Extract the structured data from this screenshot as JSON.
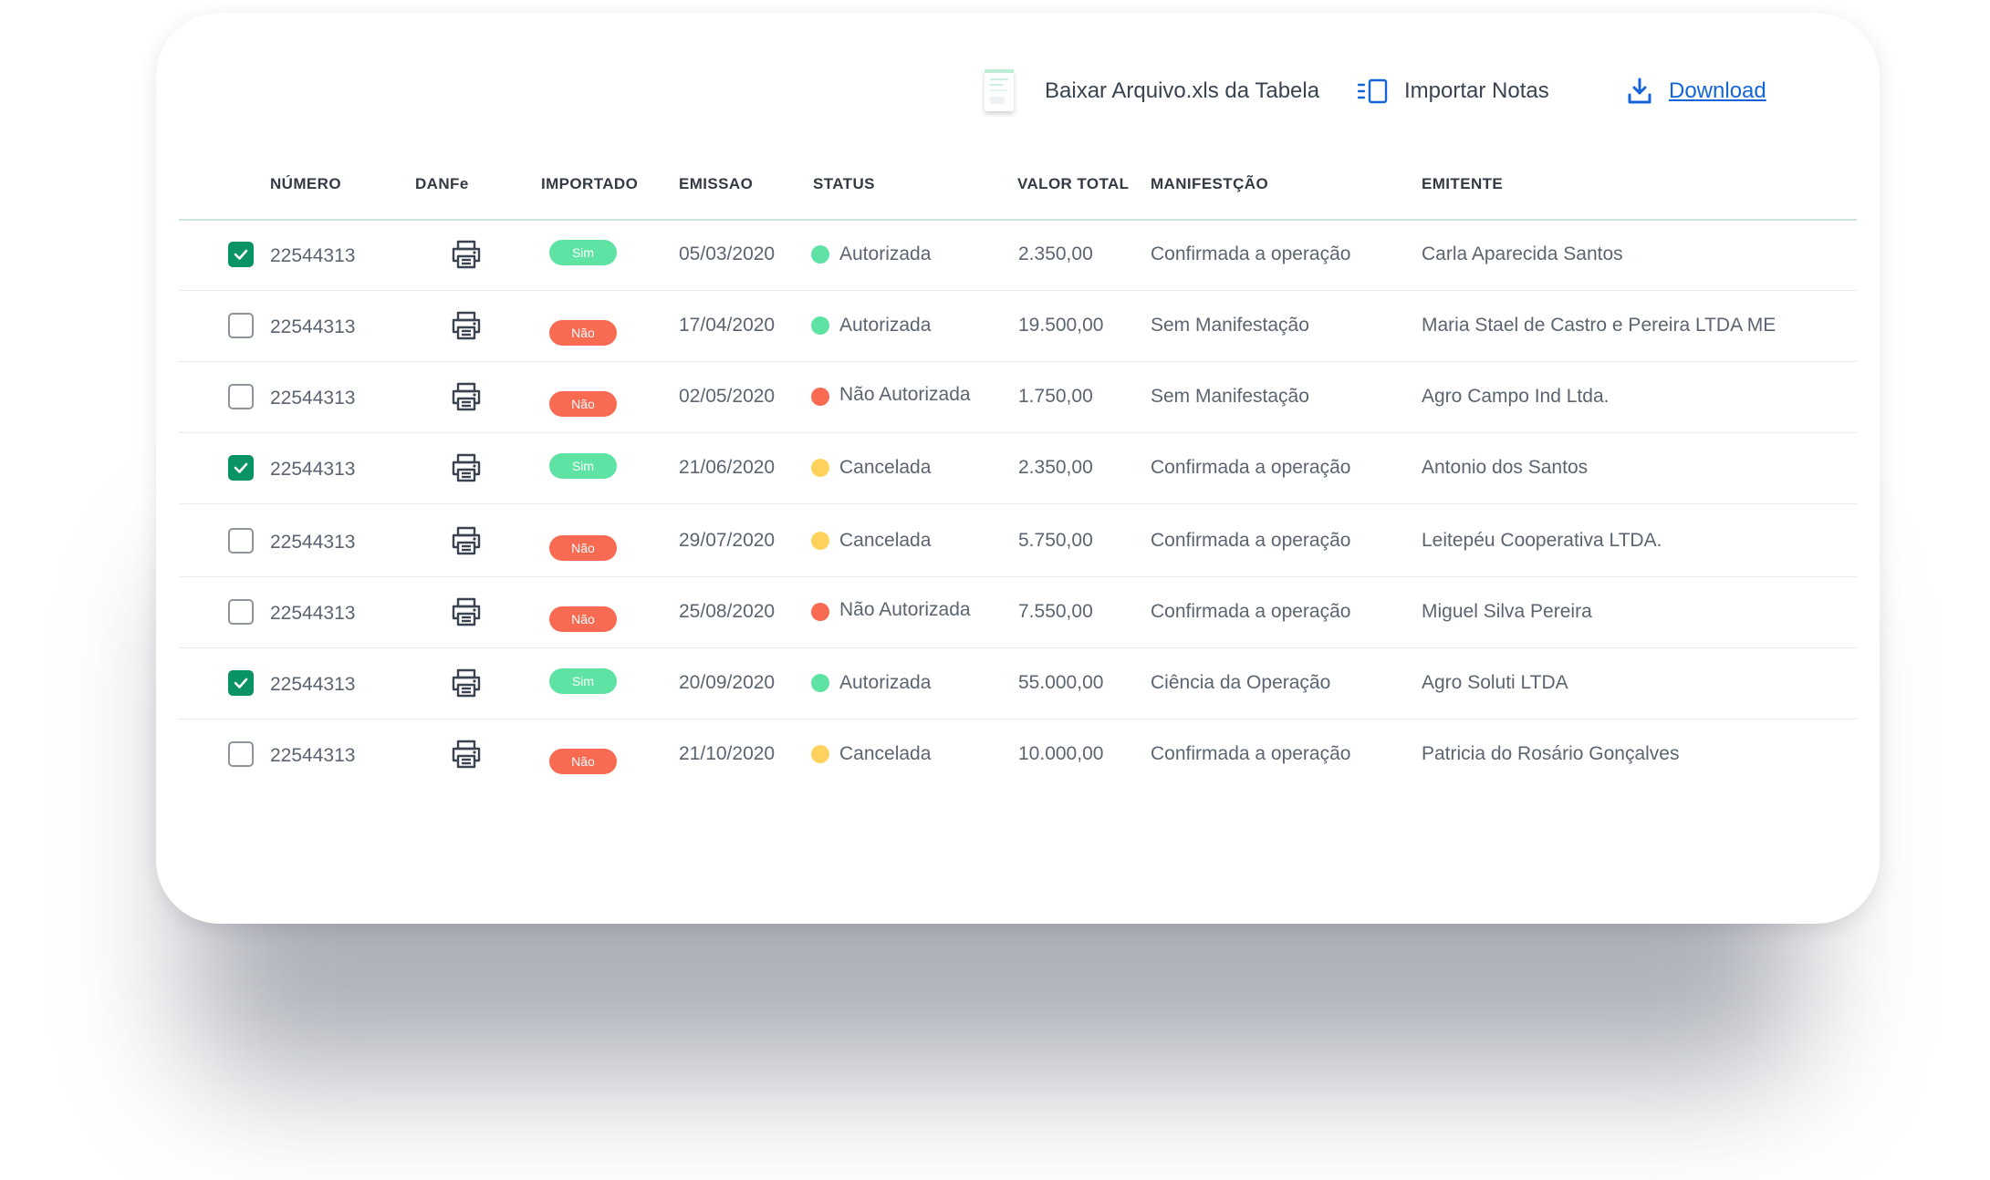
{
  "toolbar": {
    "xls_label": "Baixar Arquivo.xls da Tabela",
    "import_label": "Importar Notas",
    "download_label": "Download"
  },
  "columns": [
    "NÚMERO",
    "DANFe",
    "IMPORTADO",
    "EMISSAO",
    "STATUS",
    "VALOR TOTAL",
    "MANIFESTÇÃO",
    "EMITENTE"
  ],
  "status_colors": {
    "Autorizada": "#5fe3a4",
    "Não Autorizada": "#f86a52",
    "Cancelada": "#ffd25e"
  },
  "rows": [
    {
      "checked": true,
      "numero": "22544313",
      "importado": "Sim",
      "emissao": "05/03/2020",
      "status": "Autorizada",
      "valor": "2.350,00",
      "manifestacao": "Confirmada a operação",
      "emitente": "Carla Aparecida Santos"
    },
    {
      "checked": false,
      "numero": "22544313",
      "importado": "Não",
      "emissao": "17/04/2020",
      "status": "Autorizada",
      "valor": "19.500,00",
      "manifestacao": "Sem Manifestação",
      "emitente": "Maria Stael de Castro e Pereira LTDA ME"
    },
    {
      "checked": false,
      "numero": "22544313",
      "importado": "Não",
      "emissao": "02/05/2020",
      "status": "Não Autorizada",
      "valor": "1.750,00",
      "manifestacao": "Sem Manifestação",
      "emitente": "Agro Campo Ind  Ltda."
    },
    {
      "checked": true,
      "numero": "22544313",
      "importado": "Sim",
      "emissao": "21/06/2020",
      "status": "Cancelada",
      "valor": "2.350,00",
      "manifestacao": "Confirmada a operação",
      "emitente": "Antonio dos Santos"
    },
    {
      "checked": false,
      "numero": "22544313",
      "importado": "Não",
      "emissao": "29/07/2020",
      "status": "Cancelada",
      "valor": "5.750,00",
      "manifestacao": "Confirmada a operação",
      "emitente": "Leitepéu Cooperativa LTDA."
    },
    {
      "checked": false,
      "numero": "22544313",
      "importado": "Não",
      "emissao": "25/08/2020",
      "status": "Não Autorizada",
      "valor": "7.550,00",
      "manifestacao": "Confirmada a operação",
      "emitente": "Miguel Silva Pereira"
    },
    {
      "checked": true,
      "numero": "22544313",
      "importado": "Sim",
      "emissao": "20/09/2020",
      "status": "Autorizada",
      "valor": "55.000,00",
      "manifestacao": "Ciência da Operação",
      "emitente": "Agro Soluti LTDA"
    },
    {
      "checked": false,
      "numero": "22544313",
      "importado": "Não",
      "emissao": "21/10/2020",
      "status": "Cancelada",
      "valor": "10.000,00",
      "manifestacao": "Confirmada a operação",
      "emitente": "Patricia do Rosário Gonçalves"
    }
  ]
}
